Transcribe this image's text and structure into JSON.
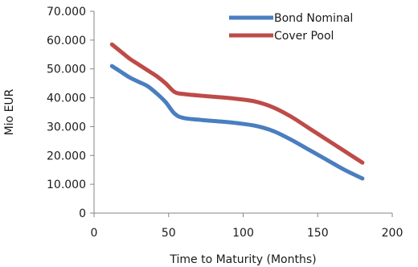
{
  "chart_data": {
    "type": "line",
    "title": "",
    "xlabel": "Time to Maturity (Months)",
    "ylabel": "Mio EUR",
    "xlim": [
      0,
      200
    ],
    "ylim": [
      0,
      70000
    ],
    "x_ticks": [
      0,
      50,
      100,
      150,
      200
    ],
    "y_ticks": [
      0,
      10000,
      20000,
      30000,
      40000,
      50000,
      60000,
      70000
    ],
    "x_tick_labels": [
      "0",
      "50",
      "100",
      "150",
      "200"
    ],
    "y_tick_labels": [
      "0",
      "10.000",
      "20.000",
      "30.000",
      "40.000",
      "50.000",
      "60.000",
      "70.000"
    ],
    "grid": false,
    "legend_position": "top-right",
    "series": [
      {
        "name": "Bond Nominal",
        "color": "#4a7ebf",
        "x": [
          12,
          18,
          24,
          30,
          36,
          42,
          48,
          54,
          60,
          72,
          84,
          96,
          108,
          120,
          132,
          144,
          156,
          168,
          180
        ],
        "y": [
          51000,
          49000,
          47000,
          45500,
          44000,
          41500,
          38500,
          34500,
          33000,
          32300,
          31800,
          31200,
          30300,
          28500,
          25500,
          22000,
          18500,
          15000,
          12000
        ]
      },
      {
        "name": "Cover Pool",
        "color": "#be4b48",
        "x": [
          12,
          18,
          24,
          30,
          36,
          42,
          48,
          54,
          60,
          72,
          84,
          96,
          108,
          120,
          132,
          144,
          156,
          168,
          180
        ],
        "y": [
          58500,
          56000,
          53500,
          51500,
          49500,
          47500,
          45000,
          42000,
          41300,
          40700,
          40200,
          39600,
          38700,
          36700,
          33500,
          29500,
          25500,
          21500,
          17500
        ]
      }
    ]
  }
}
